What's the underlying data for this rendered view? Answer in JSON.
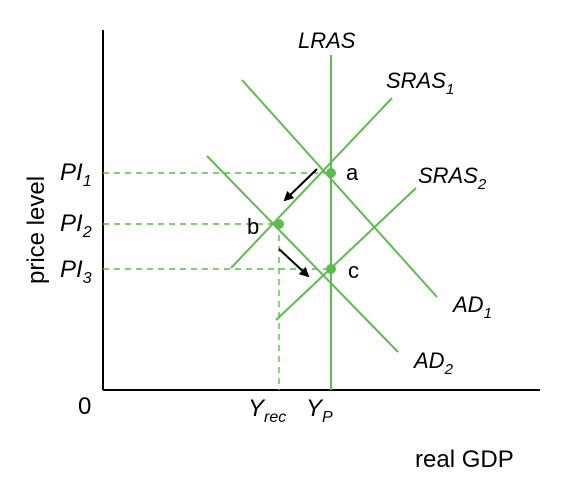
{
  "colors": {
    "curve": "#5dbb4f",
    "axis": "#000000",
    "dash": "#5dbb4f",
    "arrow": "#000000"
  },
  "axes": {
    "y_label": "price level",
    "x_label": "real GDP",
    "origin": "0"
  },
  "price_levels": [
    "PI",
    "PI",
    "PI"
  ],
  "price_subs": [
    "1",
    "2",
    "3"
  ],
  "x_ticks": {
    "yrec": "Y",
    "yrec_sub": "rec",
    "yp": "Y",
    "yp_sub": "P"
  },
  "curves": {
    "lras": "LRAS",
    "sras1": "SRAS",
    "sras1_sub": "1",
    "sras2": "SRAS",
    "sras2_sub": "2",
    "ad1": "AD",
    "ad1_sub": "1",
    "ad2": "AD",
    "ad2_sub": "2"
  },
  "points": {
    "a": "a",
    "b": "b",
    "c": "c"
  }
}
